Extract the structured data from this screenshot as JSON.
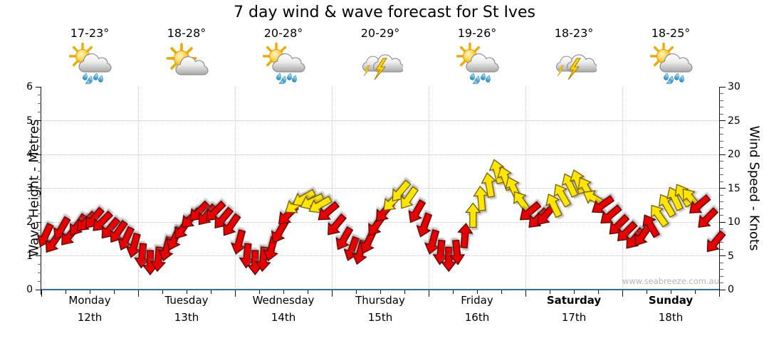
{
  "title": "7 day wind & wave forecast for St Ives",
  "days": [
    {
      "name": "Monday",
      "date": "12th",
      "temp": "17-23°",
      "icon": "sun-cloud-rain",
      "bold": false
    },
    {
      "name": "Tuesday",
      "date": "13th",
      "temp": "18-28°",
      "icon": "sun-cloud",
      "bold": false
    },
    {
      "name": "Wednesday",
      "date": "14th",
      "temp": "20-28°",
      "icon": "sun-cloud-rain",
      "bold": false
    },
    {
      "name": "Thursday",
      "date": "15th",
      "temp": "20-29°",
      "icon": "thunderstorm",
      "bold": false
    },
    {
      "name": "Friday",
      "date": "16th",
      "temp": "19-26°",
      "icon": "sun-cloud-rain",
      "bold": false
    },
    {
      "name": "Saturday",
      "date": "17th",
      "temp": "18-23°",
      "icon": "thunderstorm",
      "bold": true
    },
    {
      "name": "Sunday",
      "date": "18th",
      "temp": "18-25°",
      "icon": "sun-cloud-rain",
      "bold": true
    }
  ],
  "left_axis": {
    "label": "Wave Height - Metres",
    "ticks": [
      0,
      1,
      2,
      3,
      4,
      5,
      6
    ],
    "max": 6
  },
  "right_axis": {
    "label": "Wind Speed - Knots",
    "ticks": [
      0,
      5,
      10,
      15,
      20,
      25,
      30
    ],
    "max": 30
  },
  "watermark": "www.seabreeze.com.au",
  "colors": {
    "arrow_red": "#e80000",
    "arrow_yellow": "#ffe600",
    "axis_line_teal": "#336f94",
    "grid_gray": "#c4c4c4",
    "date_gray": "#999999"
  },
  "chart_data": {
    "type": "scatter",
    "subtype": "wind-direction-arrows",
    "title": "7 day wind & wave forecast for St Ives",
    "ylabel_left": "Wave Height - Metres",
    "ylabel_right": "Wind Speed - Knots",
    "ylim_left_metres": [
      0,
      6
    ],
    "ylim_right_knots": [
      0,
      30
    ],
    "grid": true,
    "categories": [
      "Monday 12th",
      "Tuesday 13th",
      "Wednesday 14th",
      "Thursday 15th",
      "Friday 16th",
      "Saturday 17th",
      "Sunday 18th"
    ],
    "points_per_day": 12,
    "direction_convention": "degrees arrow points on screen: 0=up(N), 90=right(E), 180=down(S), 270=left(W)",
    "speeds_knots": [
      8,
      7,
      9,
      8,
      9.5,
      10,
      10.5,
      10,
      9,
      8.5,
      7.5,
      6.5,
      5,
      4,
      4.5,
      6,
      7.5,
      9,
      10.5,
      11.5,
      11,
      11.5,
      10.5,
      9.5,
      7,
      5,
      4,
      4.5,
      6,
      8.5,
      11,
      12.5,
      13.5,
      13,
      12.5,
      11.5,
      9.5,
      7.5,
      6,
      5.5,
      7,
      9.5,
      11.5,
      13,
      14.5,
      13.5,
      11.5,
      9.5,
      7,
      5.5,
      4.5,
      5.5,
      8,
      11,
      13.5,
      15.5,
      17.5,
      16.5,
      15,
      13,
      11.5,
      10.5,
      11,
      12.5,
      14,
      15.5,
      16,
      15,
      13.5,
      12.5,
      11,
      9.5,
      8.5,
      7.5,
      8,
      9.5,
      11,
      12.5,
      13.5,
      14,
      13.5,
      12.5,
      10.5,
      7
    ],
    "directions_deg": [
      205,
      215,
      210,
      220,
      215,
      225,
      220,
      225,
      220,
      215,
      205,
      195,
      185,
      180,
      185,
      195,
      205,
      215,
      225,
      225,
      220,
      225,
      220,
      215,
      195,
      185,
      180,
      185,
      195,
      210,
      225,
      235,
      240,
      245,
      240,
      230,
      220,
      210,
      200,
      195,
      205,
      215,
      220,
      225,
      220,
      215,
      210,
      200,
      195,
      185,
      180,
      175,
      5,
      0,
      355,
      350,
      345,
      340,
      335,
      325,
      230,
      225,
      220,
      335,
      330,
      335,
      340,
      330,
      300,
      235,
      230,
      225,
      225,
      220,
      215,
      330,
      325,
      330,
      335,
      330,
      320,
      230,
      225,
      220
    ],
    "arrow_colors": [
      "red",
      "red",
      "red",
      "red",
      "red",
      "red",
      "red",
      "red",
      "red",
      "red",
      "red",
      "red",
      "red",
      "red",
      "red",
      "red",
      "red",
      "red",
      "red",
      "red",
      "red",
      "red",
      "red",
      "red",
      "red",
      "red",
      "red",
      "red",
      "red",
      "red",
      "red",
      "yellow",
      "yellow",
      "yellow",
      "yellow",
      "red",
      "red",
      "red",
      "red",
      "red",
      "red",
      "red",
      "red",
      "yellow",
      "yellow",
      "yellow",
      "red",
      "red",
      "red",
      "red",
      "red",
      "red",
      "red",
      "yellow",
      "yellow",
      "yellow",
      "yellow",
      "yellow",
      "yellow",
      "yellow",
      "red",
      "red",
      "red",
      "yellow",
      "yellow",
      "yellow",
      "yellow",
      "yellow",
      "yellow",
      "red",
      "red",
      "red",
      "red",
      "red",
      "red",
      "red",
      "yellow",
      "yellow",
      "yellow",
      "yellow",
      "yellow",
      "red",
      "red",
      "red"
    ]
  }
}
